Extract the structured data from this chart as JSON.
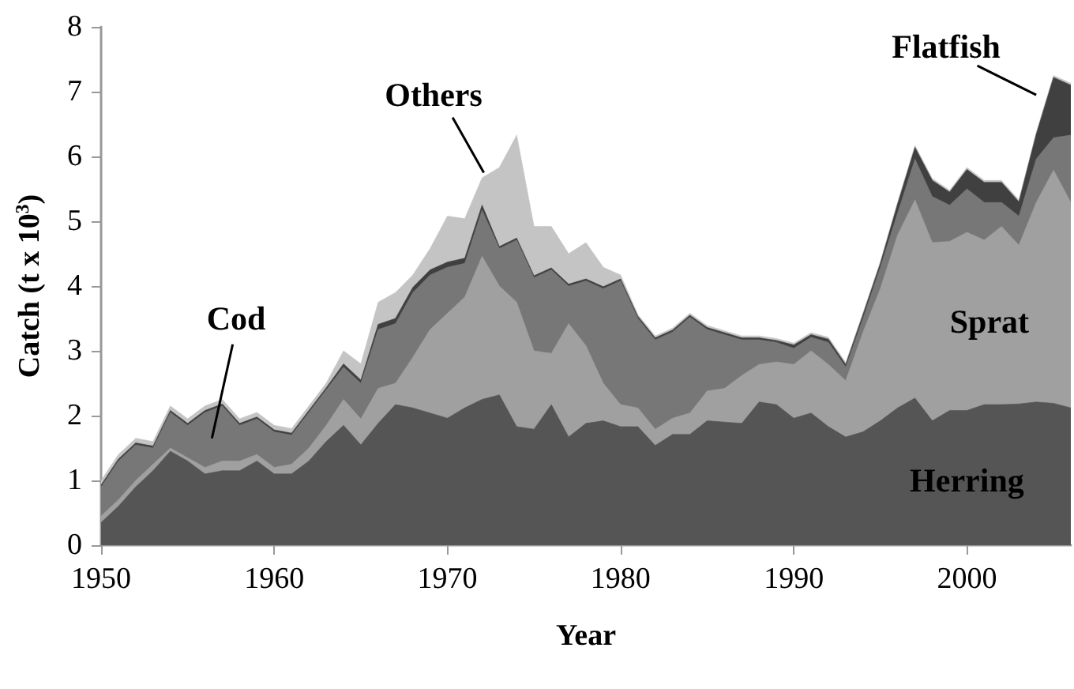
{
  "chart_data": {
    "type": "area",
    "stacked": true,
    "xlabel": "Year",
    "ylabel": "Catch (t x 10$^{3}$)",
    "x": [
      1950,
      1951,
      1952,
      1953,
      1954,
      1955,
      1956,
      1957,
      1958,
      1959,
      1960,
      1961,
      1962,
      1963,
      1964,
      1965,
      1966,
      1967,
      1968,
      1969,
      1970,
      1971,
      1972,
      1973,
      1974,
      1975,
      1976,
      1977,
      1978,
      1979,
      1980,
      1981,
      1982,
      1983,
      1984,
      1985,
      1986,
      1987,
      1988,
      1989,
      1990,
      1991,
      1992,
      1993,
      1994,
      1995,
      1996,
      1997,
      1998,
      1999,
      2000,
      2001,
      2002,
      2003,
      2004,
      2005,
      2006
    ],
    "xlim": [
      1950,
      2006
    ],
    "xticks": [
      1950,
      1960,
      1970,
      1980,
      1990,
      2000
    ],
    "ylim": [
      0,
      8
    ],
    "yticks": [
      0,
      1,
      2,
      3,
      4,
      5,
      6,
      7,
      8
    ],
    "grid": false,
    "legend": false,
    "series": [
      {
        "name": "Herring",
        "color": "#555555",
        "values": [
          0.35,
          0.6,
          0.9,
          1.15,
          1.45,
          1.3,
          1.1,
          1.15,
          1.15,
          1.3,
          1.1,
          1.1,
          1.3,
          1.6,
          1.85,
          1.55,
          1.88,
          2.17,
          2.12,
          2.04,
          1.96,
          2.12,
          2.25,
          2.32,
          1.83,
          1.79,
          2.17,
          1.67,
          1.88,
          1.92,
          1.83,
          1.83,
          1.54,
          1.71,
          1.71,
          1.92,
          1.9,
          1.88,
          2.21,
          2.17,
          1.96,
          2.04,
          1.83,
          1.67,
          1.75,
          1.92,
          2.12,
          2.27,
          1.92,
          2.08,
          2.08,
          2.17,
          2.17,
          2.18,
          2.21,
          2.19,
          2.12
        ]
      },
      {
        "name": "Sprat",
        "color": "#a0a0a0",
        "values": [
          0.1,
          0.1,
          0.1,
          0.1,
          0.05,
          0.05,
          0.1,
          0.15,
          0.15,
          0.1,
          0.1,
          0.15,
          0.2,
          0.25,
          0.4,
          0.4,
          0.54,
          0.33,
          0.78,
          1.29,
          1.62,
          1.71,
          2.21,
          1.68,
          1.92,
          1.21,
          0.79,
          1.75,
          1.2,
          0.58,
          0.34,
          0.29,
          0.25,
          0.25,
          0.33,
          0.46,
          0.52,
          0.74,
          0.58,
          0.66,
          0.83,
          0.96,
          0.96,
          0.87,
          1.54,
          2.04,
          2.67,
          3.06,
          2.75,
          2.61,
          2.75,
          2.54,
          2.75,
          2.45,
          3.08,
          3.6,
          3.17
        ]
      },
      {
        "name": "Cod",
        "color": "#777777",
        "values": [
          0.45,
          0.6,
          0.55,
          0.25,
          0.55,
          0.5,
          0.85,
          0.85,
          0.55,
          0.55,
          0.55,
          0.45,
          0.55,
          0.55,
          0.5,
          0.55,
          0.91,
          0.92,
          1.0,
          0.84,
          0.71,
          0.52,
          0.71,
          0.58,
          0.96,
          1.13,
          1.29,
          0.58,
          1.0,
          1.46,
          1.91,
          1.38,
          1.38,
          1.33,
          1.48,
          0.95,
          0.83,
          0.55,
          0.38,
          0.3,
          0.25,
          0.21,
          0.34,
          0.21,
          0.21,
          0.33,
          0.34,
          0.63,
          0.71,
          0.56,
          0.67,
          0.58,
          0.37,
          0.45,
          0.67,
          0.5,
          1.04
        ]
      },
      {
        "name": "Flatfish",
        "color": "#404040",
        "values": [
          0.03,
          0.03,
          0.03,
          0.03,
          0.03,
          0.03,
          0.03,
          0.03,
          0.03,
          0.03,
          0.03,
          0.03,
          0.03,
          0.03,
          0.05,
          0.05,
          0.08,
          0.08,
          0.08,
          0.08,
          0.08,
          0.08,
          0.08,
          0.03,
          0.03,
          0.03,
          0.03,
          0.03,
          0.03,
          0.03,
          0.03,
          0.03,
          0.03,
          0.03,
          0.03,
          0.03,
          0.03,
          0.03,
          0.03,
          0.03,
          0.05,
          0.04,
          0.05,
          0.04,
          0.06,
          0.06,
          0.14,
          0.18,
          0.25,
          0.2,
          0.3,
          0.31,
          0.31,
          0.22,
          0.38,
          0.93,
          0.77
        ]
      },
      {
        "name": "Others",
        "color": "#c4c4c4",
        "values": [
          0.07,
          0.07,
          0.07,
          0.07,
          0.07,
          0.07,
          0.07,
          0.07,
          0.07,
          0.07,
          0.07,
          0.07,
          0.07,
          0.07,
          0.2,
          0.25,
          0.34,
          0.4,
          0.19,
          0.33,
          0.71,
          0.61,
          0.42,
          1.22,
          1.59,
          0.76,
          0.64,
          0.47,
          0.56,
          0.3,
          0.06,
          0.03,
          0.03,
          0.03,
          0.03,
          0.03,
          0.03,
          0.03,
          0.03,
          0.03,
          0.03,
          0.03,
          0.03,
          0.03,
          0.03,
          0.03,
          0.03,
          0.03,
          0.03,
          0.03,
          0.03,
          0.03,
          0.03,
          0.03,
          0.03,
          0.03,
          0.03
        ]
      }
    ]
  }
}
